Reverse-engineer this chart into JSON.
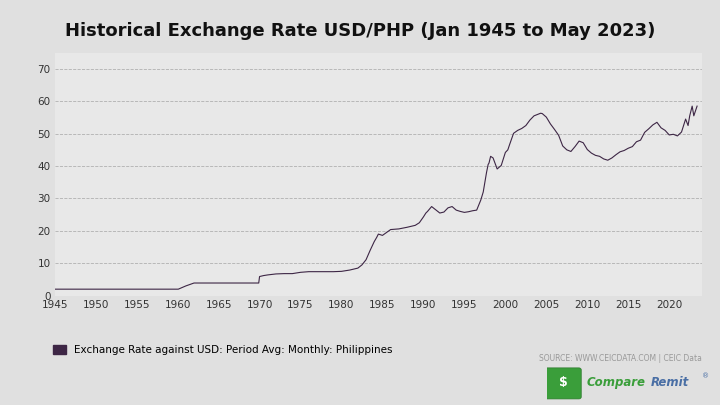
{
  "title": "Historical Exchange Rate USD/PHP (Jan 1945 to May 2023)",
  "legend_label": "Exchange Rate against USD: Period Avg: Monthly: Philippines",
  "source_text": "SOURCE: WWW.CEICDATA.COM | CEIC Data",
  "line_color": "#3d2645",
  "background_color": "#e8e8e8",
  "fig_background": "#e0e0e0",
  "xlim": [
    1945,
    2024
  ],
  "ylim": [
    0,
    75
  ],
  "yticks": [
    0,
    10,
    20,
    30,
    40,
    50,
    60,
    70
  ],
  "xticks": [
    1945,
    1950,
    1955,
    1960,
    1965,
    1970,
    1975,
    1980,
    1985,
    1990,
    1995,
    2000,
    2005,
    2010,
    2015,
    2020
  ],
  "key_points": [
    [
      1945.0,
      2.0
    ],
    [
      1946.0,
      2.0
    ],
    [
      1947.0,
      2.0
    ],
    [
      1948.0,
      2.0
    ],
    [
      1949.0,
      2.0
    ],
    [
      1950.0,
      2.0
    ],
    [
      1951.0,
      2.0
    ],
    [
      1952.0,
      2.0
    ],
    [
      1953.0,
      2.0
    ],
    [
      1954.0,
      2.0
    ],
    [
      1955.0,
      2.0
    ],
    [
      1956.0,
      2.0
    ],
    [
      1957.0,
      2.0
    ],
    [
      1958.0,
      2.0
    ],
    [
      1959.0,
      2.0
    ],
    [
      1960.0,
      2.0
    ],
    [
      1960.08,
      2.0
    ],
    [
      1961.0,
      3.0
    ],
    [
      1962.0,
      3.9
    ],
    [
      1963.0,
      3.9
    ],
    [
      1964.0,
      3.9
    ],
    [
      1965.0,
      3.9
    ],
    [
      1966.0,
      3.9
    ],
    [
      1967.0,
      3.9
    ],
    [
      1968.0,
      3.9
    ],
    [
      1969.9,
      3.9
    ],
    [
      1970.0,
      5.9
    ],
    [
      1970.5,
      6.2
    ],
    [
      1971.0,
      6.4
    ],
    [
      1972.0,
      6.7
    ],
    [
      1973.0,
      6.8
    ],
    [
      1974.0,
      6.8
    ],
    [
      1975.0,
      7.2
    ],
    [
      1976.0,
      7.4
    ],
    [
      1977.0,
      7.4
    ],
    [
      1978.0,
      7.4
    ],
    [
      1979.0,
      7.4
    ],
    [
      1980.0,
      7.5
    ],
    [
      1981.0,
      7.9
    ],
    [
      1982.0,
      8.5
    ],
    [
      1982.5,
      9.5
    ],
    [
      1983.0,
      11.1
    ],
    [
      1983.5,
      14.0
    ],
    [
      1984.0,
      16.7
    ],
    [
      1984.3,
      18.0
    ],
    [
      1984.5,
      19.0
    ],
    [
      1985.0,
      18.6
    ],
    [
      1985.5,
      19.5
    ],
    [
      1986.0,
      20.4
    ],
    [
      1987.0,
      20.6
    ],
    [
      1988.0,
      21.1
    ],
    [
      1989.0,
      21.7
    ],
    [
      1989.5,
      22.5
    ],
    [
      1990.0,
      24.3
    ],
    [
      1990.3,
      25.5
    ],
    [
      1990.5,
      26.0
    ],
    [
      1991.0,
      27.5
    ],
    [
      1991.5,
      26.5
    ],
    [
      1992.0,
      25.5
    ],
    [
      1992.5,
      25.8
    ],
    [
      1993.0,
      27.1
    ],
    [
      1993.5,
      27.5
    ],
    [
      1994.0,
      26.4
    ],
    [
      1994.5,
      26.0
    ],
    [
      1995.0,
      25.7
    ],
    [
      1995.5,
      25.9
    ],
    [
      1996.0,
      26.2
    ],
    [
      1996.5,
      26.4
    ],
    [
      1997.0,
      29.5
    ],
    [
      1997.3,
      32.0
    ],
    [
      1997.5,
      35.0
    ],
    [
      1997.7,
      38.0
    ],
    [
      1997.9,
      40.5
    ],
    [
      1998.0,
      40.9
    ],
    [
      1998.2,
      43.0
    ],
    [
      1998.5,
      42.5
    ],
    [
      1999.0,
      39.1
    ],
    [
      1999.5,
      40.2
    ],
    [
      2000.0,
      44.2
    ],
    [
      2000.3,
      45.0
    ],
    [
      2000.5,
      46.5
    ],
    [
      2001.0,
      50.1
    ],
    [
      2001.5,
      51.0
    ],
    [
      2002.0,
      51.6
    ],
    [
      2002.5,
      52.5
    ],
    [
      2003.0,
      54.2
    ],
    [
      2003.5,
      55.5
    ],
    [
      2004.0,
      56.0
    ],
    [
      2004.3,
      56.3
    ],
    [
      2004.5,
      56.2
    ],
    [
      2005.0,
      55.1
    ],
    [
      2005.5,
      53.0
    ],
    [
      2006.0,
      51.3
    ],
    [
      2006.5,
      49.5
    ],
    [
      2007.0,
      46.2
    ],
    [
      2007.5,
      45.0
    ],
    [
      2008.0,
      44.5
    ],
    [
      2008.5,
      46.0
    ],
    [
      2009.0,
      47.7
    ],
    [
      2009.5,
      47.2
    ],
    [
      2010.0,
      45.1
    ],
    [
      2010.5,
      44.0
    ],
    [
      2011.0,
      43.3
    ],
    [
      2011.5,
      43.0
    ],
    [
      2012.0,
      42.2
    ],
    [
      2012.5,
      41.8
    ],
    [
      2013.0,
      42.5
    ],
    [
      2013.5,
      43.5
    ],
    [
      2014.0,
      44.4
    ],
    [
      2014.5,
      44.8
    ],
    [
      2015.0,
      45.5
    ],
    [
      2015.5,
      46.0
    ],
    [
      2016.0,
      47.5
    ],
    [
      2016.5,
      48.0
    ],
    [
      2017.0,
      50.4
    ],
    [
      2017.5,
      51.5
    ],
    [
      2018.0,
      52.7
    ],
    [
      2018.5,
      53.5
    ],
    [
      2019.0,
      51.8
    ],
    [
      2019.5,
      51.0
    ],
    [
      2020.0,
      49.6
    ],
    [
      2020.5,
      49.8
    ],
    [
      2021.0,
      49.3
    ],
    [
      2021.5,
      50.5
    ],
    [
      2022.0,
      54.5
    ],
    [
      2022.3,
      52.5
    ],
    [
      2022.5,
      55.5
    ],
    [
      2022.8,
      58.5
    ],
    [
      2023.0,
      55.5
    ],
    [
      2023.4,
      58.5
    ]
  ]
}
